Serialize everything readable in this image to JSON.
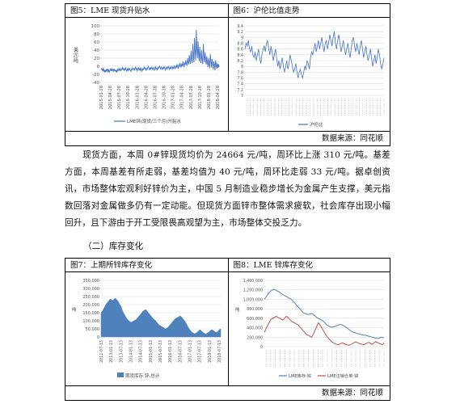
{
  "top_table": {
    "fig5": {
      "title": "图5：LME 现货升贴水",
      "chart_data": {
        "type": "line",
        "ylabel": "美元/吨",
        "ylim": [
          -40,
          100
        ],
        "yticks": [
          "100",
          "80",
          "60",
          "40",
          "20",
          "0",
          "-20",
          "-40"
        ],
        "xticks": [
          "2015-01-28",
          "2015-04-28",
          "2015-07-28",
          "2015-10-28",
          "2016-01-28",
          "2016-04-28",
          "2016-07-28",
          "2016-10-28",
          "2017-01-28",
          "2017-04-28",
          "2017-07-28",
          "2017-10-28",
          "2018-01-28",
          "2018-04-28"
        ],
        "legend": "LME锌(现货/三个月)升贴水",
        "color": "#4472c4",
        "values": [
          -8,
          -6,
          -10,
          -5,
          -12,
          -8,
          -14,
          -10,
          -15,
          -9,
          -12,
          -6,
          -13,
          -9,
          -16,
          -11,
          -7,
          -12,
          -5,
          -10,
          -8,
          -14,
          -6,
          -11,
          -9,
          -13,
          -10,
          -15,
          -8,
          -12,
          -7,
          -10,
          -5,
          -9,
          -11,
          -6,
          -8,
          -3,
          -7,
          -10,
          -6,
          -9,
          -4,
          -8,
          -12,
          -7,
          -11,
          -5,
          -9,
          -6,
          -10,
          -13,
          -8,
          -4,
          -9,
          -7,
          -5,
          -10,
          -6,
          -2,
          -8,
          -5,
          -11,
          -7,
          -3,
          -9,
          -6,
          -10,
          -4,
          -8,
          -12,
          -6,
          -9,
          -5,
          -2,
          -7,
          -4,
          -10,
          -6,
          -8,
          -3,
          -1,
          -6,
          -9,
          -4,
          -7,
          -2,
          -5,
          -8,
          -3,
          -6,
          -10,
          -4,
          -1,
          -7,
          -5,
          -9,
          -3,
          -6,
          -2,
          0,
          -4,
          -7,
          -2,
          -5,
          -8,
          -3,
          -6,
          -1,
          -4,
          -9,
          -5,
          -2,
          -7,
          -3,
          0,
          -5,
          -8,
          -2,
          -6,
          -4,
          -1,
          -7,
          -3,
          -5,
          2,
          -4,
          -6,
          0,
          -3,
          5,
          -2,
          -5,
          3,
          -1,
          8,
          2,
          -3,
          6,
          0,
          12,
          5,
          -2,
          9,
          3,
          15,
          7,
          1,
          20,
          10,
          4,
          28,
          12,
          6,
          38,
          18,
          8,
          55,
          25,
          10,
          70,
          35,
          15,
          90,
          45,
          20,
          62,
          30,
          12,
          48,
          22,
          8,
          40,
          18,
          5,
          55,
          28,
          10,
          35,
          15,
          4,
          25,
          10,
          -2,
          20,
          8,
          -5,
          30,
          12,
          -3,
          18,
          6,
          -8,
          12,
          4,
          -10,
          15,
          2,
          -6,
          8,
          -4,
          5,
          -2
        ]
      }
    },
    "fig6": {
      "title": "图6：沪伦比值走势",
      "chart_data": {
        "type": "line",
        "ylim": [
          7.0,
          9.4
        ],
        "yticks": [
          "9.4",
          "9.2",
          "9",
          "8.8",
          "8.6",
          "8.4",
          "8.2",
          "8",
          "7.8",
          "7.6",
          "7.4",
          "7.2",
          "7"
        ],
        "legend": "沪伦比",
        "color": "#4472c4",
        "values": [
          8.6,
          8.8,
          8.7,
          8.9,
          8.6,
          8.5,
          8.7,
          8.4,
          8.3,
          8.5,
          8.2,
          8.4,
          8.6,
          8.3,
          8.1,
          8.4,
          8.6,
          8.7,
          8.5,
          8.8,
          8.9,
          8.6,
          8.4,
          8.7,
          8.5,
          8.2,
          8.4,
          8.6,
          8.3,
          8.0,
          8.2,
          7.9,
          8.1,
          8.3,
          8.0,
          7.8,
          8.0,
          8.2,
          7.9,
          8.1,
          8.4,
          8.2,
          8.0,
          7.8,
          7.9,
          8.1,
          7.8,
          7.6,
          7.8,
          7.9,
          7.7,
          7.6,
          7.8,
          8.0,
          7.9,
          8.2,
          8.1,
          7.9,
          8.3,
          8.5,
          8.4,
          8.6,
          8.8,
          8.5,
          8.7,
          8.9,
          8.6,
          8.8,
          9.0,
          8.7,
          8.5,
          8.8,
          8.9,
          8.6,
          8.8,
          9.1,
          8.9,
          8.7,
          9.0,
          9.2,
          8.8,
          8.6,
          8.9,
          9.1,
          8.8,
          8.5,
          8.7,
          8.9,
          8.6,
          8.4,
          8.6,
          8.8,
          8.5,
          8.3,
          8.6,
          8.9,
          9.0,
          8.7,
          8.5,
          8.8,
          8.6,
          8.4,
          8.7,
          8.9,
          8.6,
          8.3,
          8.5,
          8.7,
          8.4,
          8.2,
          8.4,
          8.6,
          8.3,
          8.0,
          8.2,
          8.4,
          8.1,
          8.3,
          8.6,
          8.4,
          8.1,
          7.9,
          8.1,
          8.3
        ]
      }
    },
    "source": "数据来源：同花顺"
  },
  "paragraph": {
    "text": "现货方面，本周 0#锌现货均价为 24664 元/吨，周环比上涨 310 元/吨。基差方面，本周基差有所走弱，基差均值为 40 元/吨，周环比走弱 33 元/吨。据卓创资讯，市场整体宏观利好锌价为主，中国 5 月制造业稳步增长为金属产生支撑，美元指数回落对金属做多仍有一定动能。但现货方面锌市整体需求疲软，社会库存出现小幅回升，且下游由于开工受限畏高观望为主，市场整体交投乏力。"
  },
  "section": {
    "title": "（二）库存变化"
  },
  "bottom_table": {
    "fig7": {
      "title": "图7：上期所锌库存变化",
      "chart_data": {
        "type": "area",
        "ylabel": "吨",
        "ylim": [
          0,
          350000
        ],
        "yticks": [
          "350,000",
          "300,000",
          "250,000",
          "200,000",
          "150,000",
          "100,000",
          "50,000",
          "0"
        ],
        "xticks": [
          "2012-07-13",
          "2013-01-13",
          "2013-07-13",
          "2014-01-13",
          "2014-07-13",
          "2015-01-13",
          "2015-07-13",
          "2016-01-13",
          "2016-07-13",
          "2017-01-13",
          "2017-07-13",
          "2018-01-13",
          "2018-07-13"
        ],
        "legend": "期货库存:锌:总计",
        "color": "#4f81bd",
        "values": [
          150000,
          160000,
          175000,
          190000,
          205000,
          215000,
          225000,
          235000,
          230000,
          225000,
          235000,
          240000,
          230000,
          220000,
          205000,
          190000,
          170000,
          150000,
          135000,
          120000,
          110000,
          100000,
          95000,
          90000,
          95000,
          100000,
          105000,
          110000,
          120000,
          130000,
          140000,
          150000,
          160000,
          165000,
          170000,
          160000,
          150000,
          140000,
          130000,
          120000,
          110000,
          105000,
          95000,
          85000,
          75000,
          70000,
          65000,
          60000,
          55000,
          50000,
          55000,
          60000,
          70000,
          80000,
          90000,
          100000,
          110000,
          115000,
          120000,
          125000,
          130000,
          125000,
          115000,
          105000,
          95000,
          80000,
          65000,
          50000,
          40000,
          30000,
          25000,
          20000,
          22000,
          28000,
          35000,
          45000,
          40000,
          32000,
          25000,
          20000,
          18000,
          25000,
          30000,
          38000,
          45000,
          42000,
          35000,
          30000,
          28000,
          35000,
          45000,
          50000
        ]
      }
    },
    "fig8": {
      "title": "图8：LME 锌库存变化",
      "chart_data": {
        "type": "line",
        "ylabel": "吨",
        "ylim": [
          0,
          1400000
        ],
        "yticks": [
          "1,400,000",
          "1,200,000",
          "1,000,000",
          "800,000",
          "600,000",
          "400,000",
          "200,000",
          "0"
        ],
        "series": [
          {
            "name": "LME库存:锌",
            "color": "#4f81bd",
            "values": [
              1000000,
              1050000,
              1100000,
              1150000,
              1180000,
              1200000,
              1210000,
              1190000,
              1170000,
              1150000,
              1120000,
              1100000,
              1080000,
              1060000,
              1040000,
              1020000,
              1000000,
              960000,
              920000,
              880000,
              840000,
              800000,
              760000,
              720000,
              700000,
              690000,
              680000,
              690000,
              700000,
              680000,
              650000,
              620000,
              600000,
              580000,
              560000,
              540000,
              500000,
              460000,
              440000,
              420000,
              410000,
              420000,
              430000,
              440000,
              460000,
              470000,
              460000,
              440000,
              420000,
              400000,
              370000,
              340000,
              320000,
              300000,
              290000,
              280000,
              270000,
              260000,
              250000,
              245000,
              240000,
              230000,
              220000,
              210000,
              200000,
              190000,
              180000,
              175000,
              170000,
              200000,
              195000,
              185000
            ]
          },
          {
            "name": "LME注销仓单:锌",
            "color": "#c0504d",
            "values": [
              300000,
              380000,
              450000,
              520000,
              580000,
              600000,
              620000,
              640000,
              620000,
              600000,
              580000,
              560000,
              600000,
              640000,
              620000,
              580000,
              540000,
              520000,
              500000,
              480000,
              460000,
              420000,
              380000,
              340000,
              300000,
              260000,
              240000,
              220000,
              200000,
              260000,
              340000,
              420000,
              500000,
              460000,
              400000,
              340000,
              280000,
              220000,
              180000,
              140000,
              100000,
              80000,
              60000,
              50000,
              40000,
              60000,
              80000,
              70000,
              50000,
              40000,
              30000,
              40000,
              60000,
              80000,
              100000,
              90000,
              70000,
              60000,
              50000,
              40000,
              60000,
              80000,
              90000,
              70000,
              50000,
              80000,
              100000,
              90000,
              70000,
              60000,
              40000,
              80000
            ]
          }
        ]
      }
    },
    "source": "数据来源：同花顺"
  }
}
